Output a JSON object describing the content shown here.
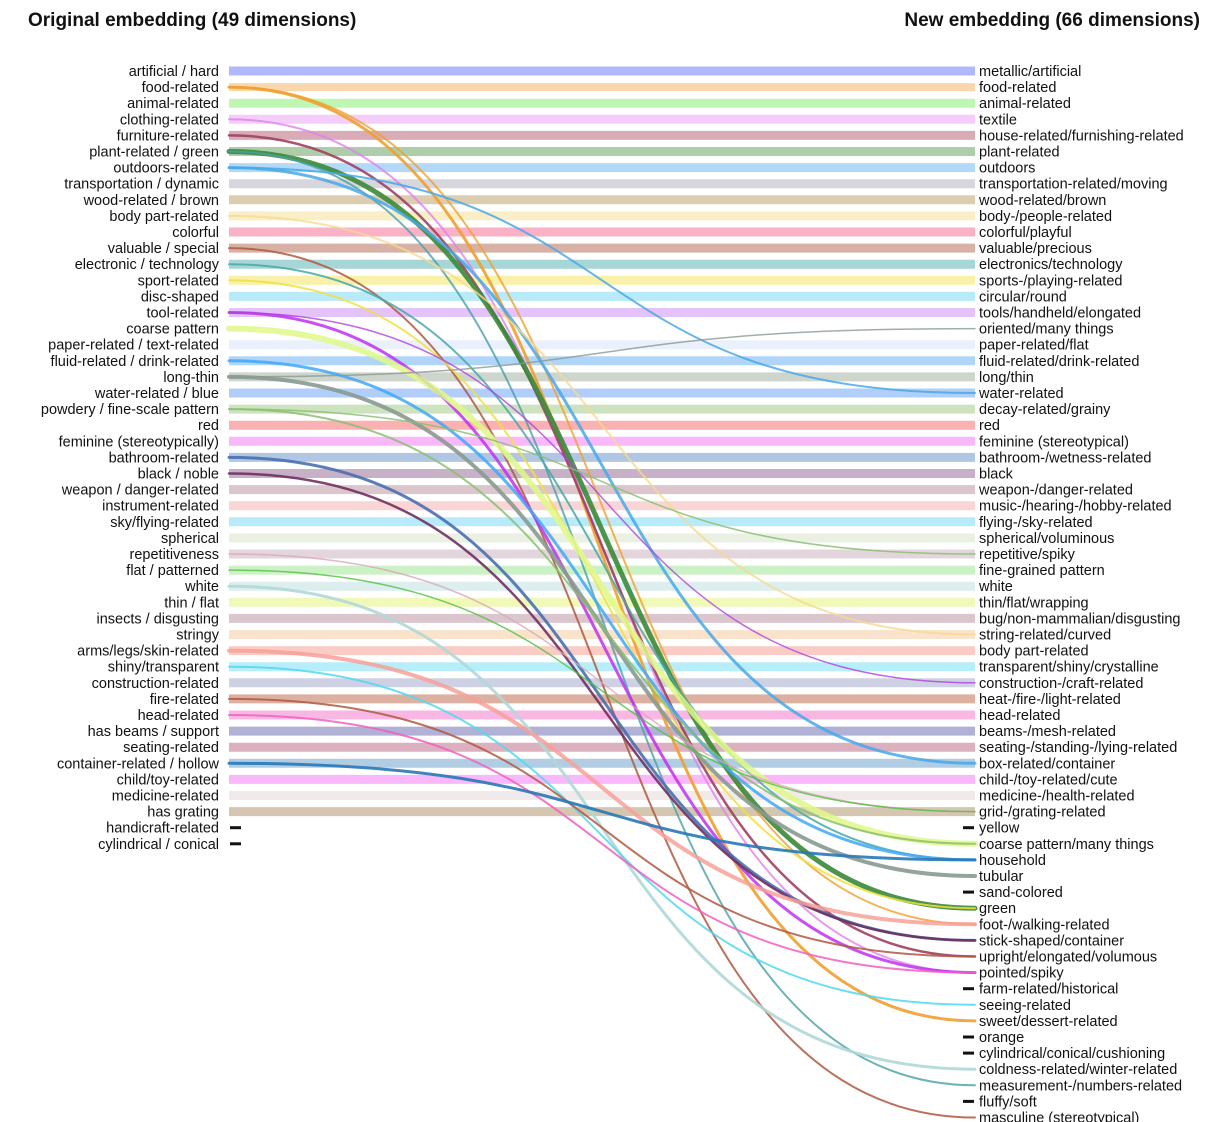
{
  "titles": {
    "left": "Original embedding (49 dimensions)",
    "right": "New embedding (66 dimensions)"
  },
  "left": [
    {
      "label": "artificial / hard",
      "color": "#aab0ff"
    },
    {
      "label": "food-related",
      "color": "#f0a030"
    },
    {
      "label": "animal-related",
      "color": "#b8f5a8"
    },
    {
      "label": "clothing-related",
      "color": "#e8a0f0"
    },
    {
      "label": "furniture-related",
      "color": "#a04060"
    },
    {
      "label": "plant-related / green",
      "color": "#3a8a3a"
    },
    {
      "label": "outdoors-related",
      "color": "#4aa8e8"
    },
    {
      "label": "transportation / dynamic",
      "color": "#d2d2d8"
    },
    {
      "label": "wood-related / brown",
      "color": "#d8c8a8"
    },
    {
      "label": "body part-related",
      "color": "#f8e8a0"
    },
    {
      "label": "colorful",
      "color": "#f8a8c0"
    },
    {
      "label": "valuable / special",
      "color": "#b04838"
    },
    {
      "label": "electronic / technology",
      "color": "#48a8a8"
    },
    {
      "label": "sport-related",
      "color": "#f0e040"
    },
    {
      "label": "disc-shaped",
      "color": "#b0e8f8"
    },
    {
      "label": "tool-related",
      "color": "#c030f0"
    },
    {
      "label": "coarse pattern",
      "color": "#e0f888"
    },
    {
      "label": "paper-related / text-related",
      "color": "#e8eefc"
    },
    {
      "label": "fluid-related / drink-related",
      "color": "#40a8f8"
    },
    {
      "label": "long-thin",
      "color": "#8a9a90"
    },
    {
      "label": "water-related / blue",
      "color": "#a0c8f8"
    },
    {
      "label": "powdery / fine-scale pattern",
      "color": "#88c070"
    },
    {
      "label": "red",
      "color": "#f8a8a8"
    },
    {
      "label": "feminine (stereotypically)",
      "color": "#f8a8f8"
    },
    {
      "label": "bathroom-related",
      "color": "#4870b0"
    },
    {
      "label": "black / noble",
      "color": "#703060"
    },
    {
      "label": "weapon / danger-related",
      "color": "#d8b8c0"
    },
    {
      "label": "instrument-related",
      "color": "#f8d0d0"
    },
    {
      "label": "sky/flying-related",
      "color": "#b0e8f8"
    },
    {
      "label": "spherical",
      "color": "#e8f0e0"
    },
    {
      "label": "repetitiveness",
      "color": "#d8a8b8"
    },
    {
      "label": "flat / patterned",
      "color": "#50c040"
    },
    {
      "label": "white",
      "color": "#b0d8d8"
    },
    {
      "label": "thin / flat",
      "color": "#f0f8b0"
    },
    {
      "label": "insects / disgusting",
      "color": "#d8c0c8"
    },
    {
      "label": "stringy",
      "color": "#f8e0c8"
    },
    {
      "label": "arms/legs/skin-related",
      "color": "#f8a098"
    },
    {
      "label": "shiny/transparent",
      "color": "#50d8f0"
    },
    {
      "label": "construction-related",
      "color": "#c8cce0"
    },
    {
      "label": "fire-related",
      "color": "#b05840"
    },
    {
      "label": "head-related",
      "color": "#f8b0e0"
    },
    {
      "label": "has beams / support",
      "color": "#a8a8d0"
    },
    {
      "label": "seating-related",
      "color": "#d8a0b0"
    },
    {
      "label": "container-related / hollow",
      "color": "#3888c0"
    },
    {
      "label": "child/toy-related",
      "color": "#f8a8f8"
    },
    {
      "label": "medicine-related",
      "color": "#f0e8e8"
    },
    {
      "label": "has grating",
      "color": "#d0c0a0"
    },
    {
      "label": "handicraft-related",
      "color": "#111111"
    },
    {
      "label": "cylindrical / conical",
      "color": "#111111"
    }
  ],
  "right": [
    {
      "label": "metallic/artificial",
      "color": "#aab0ff"
    },
    {
      "label": "food-related",
      "color": "#f8d0a0"
    },
    {
      "label": "animal-related",
      "color": "#b8f5a8"
    },
    {
      "label": "textile",
      "color": "#f8c8f8"
    },
    {
      "label": "house-related/furnishing-related",
      "color": "#d8a8b8"
    },
    {
      "label": "plant-related",
      "color": "#a8c8a0"
    },
    {
      "label": "outdoors",
      "color": "#b0d8f8"
    },
    {
      "label": "transportation-related/moving",
      "color": "#d8d8dc"
    },
    {
      "label": "wood-related/brown",
      "color": "#d8c8b0"
    },
    {
      "label": "body-/people-related",
      "color": "#f8ecc8"
    },
    {
      "label": "colorful/playful",
      "color": "#f8b0c0"
    },
    {
      "label": "valuable/precious",
      "color": "#d8b0a8"
    },
    {
      "label": "electronics/technology",
      "color": "#a8d8d8"
    },
    {
      "label": "sports-/playing-related",
      "color": "#f8f0a8"
    },
    {
      "label": "circular/round",
      "color": "#b0e8f8"
    },
    {
      "label": "tools/handheld/elongated",
      "color": "#e0c0f8"
    },
    {
      "label": "oriented/many things",
      "color": "#c8d0c8"
    },
    {
      "label": "paper-related/flat",
      "color": "#e8eefc"
    },
    {
      "label": "fluid-related/drink-related",
      "color": "#a8d0f8"
    },
    {
      "label": "long/thin",
      "color": "#c8d0c8"
    },
    {
      "label": "water-related",
      "color": "#a8c8f8"
    },
    {
      "label": "decay-related/grainy",
      "color": "#c8e0b8"
    },
    {
      "label": "red",
      "color": "#f8a8a8"
    },
    {
      "label": "feminine (stereotypical)",
      "color": "#f8b0f8"
    },
    {
      "label": "bathroom-/wetness-related",
      "color": "#a8c0e0"
    },
    {
      "label": "black",
      "color": "#c0a8c0"
    },
    {
      "label": "weapon-/danger-related",
      "color": "#d8c0c8"
    },
    {
      "label": "music-/hearing-/hobby-related",
      "color": "#f8d0d0"
    },
    {
      "label": "flying-/sky-related",
      "color": "#b0e8f8"
    },
    {
      "label": "spherical/voluminous",
      "color": "#e8f0e0"
    },
    {
      "label": "repetitive/spiky",
      "color": "#e0d0d8"
    },
    {
      "label": "fine-grained pattern",
      "color": "#c8f0c0"
    },
    {
      "label": "white",
      "color": "#d8ecec"
    },
    {
      "label": "thin/flat/wrapping",
      "color": "#f0f8b0"
    },
    {
      "label": "bug/non-mammalian/disgusting",
      "color": "#d8c0c8"
    },
    {
      "label": "string-related/curved",
      "color": "#f8e0c8"
    },
    {
      "label": "body part-related",
      "color": "#f8c8c0"
    },
    {
      "label": "transparent/shiny/crystalline",
      "color": "#b0ecf8"
    },
    {
      "label": "construction-/craft-related",
      "color": "#c8cce0"
    },
    {
      "label": "heat-/fire-/light-related",
      "color": "#d8a898"
    },
    {
      "label": "head-related",
      "color": "#f8b0e0"
    },
    {
      "label": "beams-/mesh-related",
      "color": "#a8a8d0"
    },
    {
      "label": "seating-/standing-/lying-related",
      "color": "#d8a8b8"
    },
    {
      "label": "box-related/container",
      "color": "#a8c8e0"
    },
    {
      "label": "child-/toy-related/cute",
      "color": "#f8b0f8"
    },
    {
      "label": "medicine-/health-related",
      "color": "#f0e8e8"
    },
    {
      "label": "grid-/grating-related",
      "color": "#d0c0a8"
    },
    {
      "label": "yellow",
      "color": "#111111"
    },
    {
      "label": "coarse pattern/many things",
      "color": "#e0f888"
    },
    {
      "label": "household",
      "color": "#2878b8"
    },
    {
      "label": "tubular",
      "color": "#8a9a90"
    },
    {
      "label": "sand-colored",
      "color": "#111111"
    },
    {
      "label": "green",
      "color": "#3a8a3a"
    },
    {
      "label": "foot-/walking-related",
      "color": "#f8a898"
    },
    {
      "label": "stick-shaped/container",
      "color": "#404078"
    },
    {
      "label": "upright/elongated/volumous",
      "color": "#a04060"
    },
    {
      "label": "pointed/spiky",
      "color": "#c030f0"
    },
    {
      "label": "farm-related/historical",
      "color": "#111111"
    },
    {
      "label": "seeing-related",
      "color": "#b080e0"
    },
    {
      "label": "sweet/dessert-related",
      "color": "#f0a848"
    },
    {
      "label": "orange",
      "color": "#111111"
    },
    {
      "label": "cylindrical/conical/cushioning",
      "color": "#111111"
    },
    {
      "label": "coldness-related/winter-related",
      "color": "#b0d8d8"
    },
    {
      "label": "measurement-/numbers-related",
      "color": "#48a0a8"
    },
    {
      "label": "fluffy/soft",
      "color": "#111111"
    },
    {
      "label": "masculine (stereotypical)",
      "color": "#b05840"
    }
  ],
  "connections": [
    {
      "from": 0,
      "to": 0,
      "color": "#aab0ff",
      "weight": 9,
      "opacity": 0.9
    },
    {
      "from": 1,
      "to": 1,
      "color": "#f8c890",
      "weight": 8,
      "opacity": 0.75
    },
    {
      "from": 2,
      "to": 2,
      "color": "#b8f5a8",
      "weight": 9,
      "opacity": 0.9
    },
    {
      "from": 3,
      "to": 3,
      "color": "#f0b8f8",
      "weight": 9,
      "opacity": 0.7
    },
    {
      "from": 4,
      "to": 4,
      "color": "#c88898",
      "weight": 9,
      "opacity": 0.7
    },
    {
      "from": 5,
      "to": 5,
      "color": "#8ab888",
      "weight": 9,
      "opacity": 0.7
    },
    {
      "from": 6,
      "to": 6,
      "color": "#a0d0f8",
      "weight": 9,
      "opacity": 0.8
    },
    {
      "from": 7,
      "to": 7,
      "color": "#d2d2d8",
      "weight": 9,
      "opacity": 0.9
    },
    {
      "from": 8,
      "to": 8,
      "color": "#d8c8a8",
      "weight": 9,
      "opacity": 0.9
    },
    {
      "from": 9,
      "to": 9,
      "color": "#f8ecc0",
      "weight": 9,
      "opacity": 0.9
    },
    {
      "from": 10,
      "to": 10,
      "color": "#f8a8c0",
      "weight": 9,
      "opacity": 0.9
    },
    {
      "from": 11,
      "to": 11,
      "color": "#c89080",
      "weight": 9,
      "opacity": 0.7
    },
    {
      "from": 12,
      "to": 12,
      "color": "#88c8c8",
      "weight": 9,
      "opacity": 0.75
    },
    {
      "from": 13,
      "to": 13,
      "color": "#f8f0a0",
      "weight": 9,
      "opacity": 0.9
    },
    {
      "from": 14,
      "to": 14,
      "color": "#b0e8f8",
      "weight": 9,
      "opacity": 0.9
    },
    {
      "from": 15,
      "to": 15,
      "color": "#d8a8f8",
      "weight": 9,
      "opacity": 0.7
    },
    {
      "from": 17,
      "to": 17,
      "color": "#e8eefc",
      "weight": 9,
      "opacity": 0.9
    },
    {
      "from": 18,
      "to": 18,
      "color": "#a8d0f8",
      "weight": 9,
      "opacity": 0.9
    },
    {
      "from": 19,
      "to": 19,
      "color": "#c8d0c8",
      "weight": 9,
      "opacity": 0.9
    },
    {
      "from": 20,
      "to": 20,
      "color": "#a8c8f8",
      "weight": 9,
      "opacity": 0.9
    },
    {
      "from": 21,
      "to": 21,
      "color": "#c8e0b8",
      "weight": 9,
      "opacity": 0.9
    },
    {
      "from": 22,
      "to": 22,
      "color": "#f8a8a8",
      "weight": 9,
      "opacity": 0.9
    },
    {
      "from": 23,
      "to": 23,
      "color": "#f8b0f8",
      "weight": 9,
      "opacity": 0.9
    },
    {
      "from": 24,
      "to": 24,
      "color": "#a8c0e0",
      "weight": 9,
      "opacity": 0.9
    },
    {
      "from": 25,
      "to": 25,
      "color": "#c0a8c0",
      "weight": 9,
      "opacity": 0.9
    },
    {
      "from": 26,
      "to": 26,
      "color": "#d8c0c8",
      "weight": 9,
      "opacity": 0.9
    },
    {
      "from": 27,
      "to": 27,
      "color": "#f8d0d0",
      "weight": 9,
      "opacity": 0.9
    },
    {
      "from": 28,
      "to": 28,
      "color": "#b0e8f8",
      "weight": 9,
      "opacity": 0.9
    },
    {
      "from": 29,
      "to": 29,
      "color": "#e8f0e0",
      "weight": 9,
      "opacity": 0.9
    },
    {
      "from": 30,
      "to": 30,
      "color": "#e0d0d8",
      "weight": 9,
      "opacity": 0.9
    },
    {
      "from": 31,
      "to": 31,
      "color": "#c8f0c0",
      "weight": 9,
      "opacity": 0.9
    },
    {
      "from": 32,
      "to": 32,
      "color": "#d8ecec",
      "weight": 9,
      "opacity": 0.9
    },
    {
      "from": 33,
      "to": 33,
      "color": "#f0f8b0",
      "weight": 9,
      "opacity": 0.9
    },
    {
      "from": 34,
      "to": 34,
      "color": "#d8c0c8",
      "weight": 9,
      "opacity": 0.9
    },
    {
      "from": 35,
      "to": 35,
      "color": "#f8e0c8",
      "weight": 9,
      "opacity": 0.9
    },
    {
      "from": 36,
      "to": 36,
      "color": "#f8c8c0",
      "weight": 9,
      "opacity": 0.9
    },
    {
      "from": 37,
      "to": 37,
      "color": "#b0ecf8",
      "weight": 9,
      "opacity": 0.9
    },
    {
      "from": 38,
      "to": 38,
      "color": "#c8cce0",
      "weight": 9,
      "opacity": 0.9
    },
    {
      "from": 39,
      "to": 39,
      "color": "#d8a898",
      "weight": 9,
      "opacity": 0.9
    },
    {
      "from": 40,
      "to": 40,
      "color": "#f8b0e0",
      "weight": 9,
      "opacity": 0.9
    },
    {
      "from": 41,
      "to": 41,
      "color": "#a8a8d0",
      "weight": 9,
      "opacity": 0.9
    },
    {
      "from": 42,
      "to": 42,
      "color": "#d8a8b8",
      "weight": 9,
      "opacity": 0.9
    },
    {
      "from": 43,
      "to": 43,
      "color": "#a8c8e0",
      "weight": 9,
      "opacity": 0.9
    },
    {
      "from": 44,
      "to": 44,
      "color": "#f8b0f8",
      "weight": 9,
      "opacity": 0.9
    },
    {
      "from": 45,
      "to": 45,
      "color": "#f0e8e8",
      "weight": 9,
      "opacity": 0.9
    },
    {
      "from": 46,
      "to": 46,
      "color": "#d0c0a8",
      "weight": 9,
      "opacity": 0.9
    },
    {
      "from": 1,
      "to": 59,
      "color": "#f0a030",
      "weight": 3,
      "opacity": 0.9
    },
    {
      "from": 1,
      "to": 53,
      "color": "#f0a030",
      "weight": 2,
      "opacity": 0.8
    },
    {
      "from": 3,
      "to": 56,
      "color": "#e080f0",
      "weight": 2,
      "opacity": 0.8
    },
    {
      "from": 4,
      "to": 55,
      "color": "#a04060",
      "weight": 2.5,
      "opacity": 0.9
    },
    {
      "from": 5,
      "to": 52,
      "color": "#3a8a3a",
      "weight": 5,
      "opacity": 0.9
    },
    {
      "from": 5,
      "to": 63,
      "color": "#48a0a8",
      "weight": 2,
      "opacity": 0.8
    },
    {
      "from": 6,
      "to": 20,
      "color": "#48a8e8",
      "weight": 2,
      "opacity": 0.85
    },
    {
      "from": 6,
      "to": 43,
      "color": "#48a8e8",
      "weight": 3,
      "opacity": 0.85
    },
    {
      "from": 9,
      "to": 35,
      "color": "#f8d890",
      "weight": 2,
      "opacity": 0.8
    },
    {
      "from": 11,
      "to": 65,
      "color": "#b05840",
      "weight": 2,
      "opacity": 0.85
    },
    {
      "from": 12,
      "to": 49,
      "color": "#48a8a8",
      "weight": 2,
      "opacity": 0.85
    },
    {
      "from": 13,
      "to": 52,
      "color": "#f0e040",
      "weight": 2,
      "opacity": 0.85
    },
    {
      "from": 15,
      "to": 56,
      "color": "#c030f0",
      "weight": 3,
      "opacity": 0.85
    },
    {
      "from": 15,
      "to": 38,
      "color": "#b040e0",
      "weight": 1.5,
      "opacity": 0.8
    },
    {
      "from": 16,
      "to": 48,
      "color": "#e0f888",
      "weight": 6,
      "opacity": 0.85
    },
    {
      "from": 18,
      "to": 49,
      "color": "#40a8f8",
      "weight": 3,
      "opacity": 0.85
    },
    {
      "from": 19,
      "to": 50,
      "color": "#8a9a90",
      "weight": 4,
      "opacity": 0.9
    },
    {
      "from": 19,
      "to": 16,
      "color": "#8a9a90",
      "weight": 1.5,
      "opacity": 0.8
    },
    {
      "from": 21,
      "to": 30,
      "color": "#88c070",
      "weight": 1.5,
      "opacity": 0.85
    },
    {
      "from": 21,
      "to": 48,
      "color": "#88c070",
      "weight": 2,
      "opacity": 0.85
    },
    {
      "from": 24,
      "to": 54,
      "color": "#4870b0",
      "weight": 3,
      "opacity": 0.9
    },
    {
      "from": 25,
      "to": 54,
      "color": "#703060",
      "weight": 2.5,
      "opacity": 0.9
    },
    {
      "from": 30,
      "to": 46,
      "color": "#d8a8b8",
      "weight": 1.5,
      "opacity": 0.8
    },
    {
      "from": 31,
      "to": 46,
      "color": "#50c040",
      "weight": 1.5,
      "opacity": 0.8
    },
    {
      "from": 32,
      "to": 62,
      "color": "#b0d8d8",
      "weight": 3,
      "opacity": 0.9
    },
    {
      "from": 36,
      "to": 53,
      "color": "#f8a098",
      "weight": 4,
      "opacity": 0.85
    },
    {
      "from": 37,
      "to": 58,
      "color": "#50d8f0",
      "weight": 2,
      "opacity": 0.85
    },
    {
      "from": 39,
      "to": 55,
      "color": "#b05840",
      "weight": 2,
      "opacity": 0.85
    },
    {
      "from": 40,
      "to": 56,
      "color": "#f060c0",
      "weight": 2,
      "opacity": 0.85
    },
    {
      "from": 43,
      "to": 49,
      "color": "#2878b8",
      "weight": 3,
      "opacity": 0.9
    }
  ]
}
